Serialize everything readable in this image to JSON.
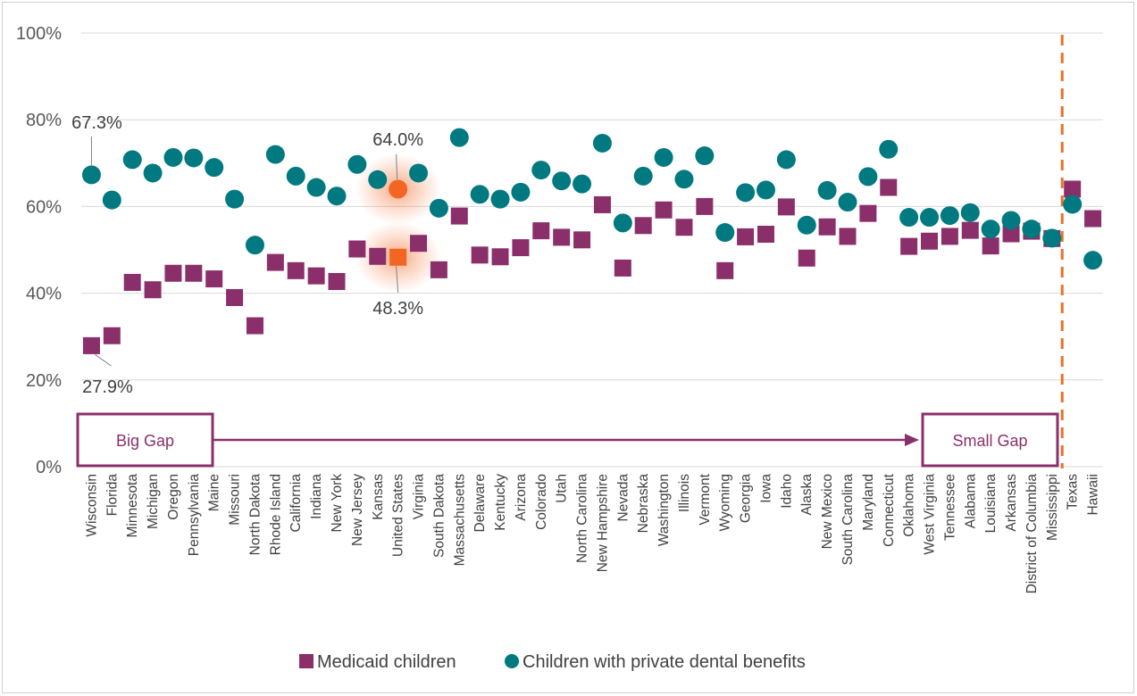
{
  "chart_data": {
    "type": "scatter",
    "title": "",
    "xlabel": "",
    "ylabel": "",
    "ylim": [
      0,
      100
    ],
    "yticks": [
      "0%",
      "20%",
      "40%",
      "60%",
      "80%",
      "100%"
    ],
    "grid": true,
    "legend_position": "bottom",
    "categories": [
      "Wisconsin",
      "Florida",
      "Minnesota",
      "Michigan",
      "Oregon",
      "Pennsylvania",
      "Maine",
      "Missouri",
      "North Dakota",
      "Rhode Island",
      "California",
      "Indiana",
      "New York",
      "New Jersey",
      "Kansas",
      "United States",
      "Virginia",
      "South Dakota",
      "Massachusetts",
      "Delaware",
      "Kentucky",
      "Arizona",
      "Colorado",
      "Utah",
      "North Carolina",
      "New Hampshire",
      "Nevada",
      "Nebraska",
      "Washington",
      "Illinois",
      "Vermont",
      "Wyoming",
      "Georgia",
      "Iowa",
      "Idaho",
      "Alaska",
      "New Mexico",
      "South Carolina",
      "Maryland",
      "Connecticut",
      "Oklahoma",
      "West Virginia",
      "Tennessee",
      "Alabama",
      "Louisiana",
      "Arkansas",
      "District of Columbia",
      "Mississippi",
      "Texas",
      "Hawaii"
    ],
    "series": [
      {
        "name": "Medicaid children",
        "color": "#8b2f6b",
        "marker": "square",
        "values": [
          27.9,
          30.2,
          42.5,
          40.8,
          44.6,
          44.6,
          43.3,
          39.0,
          32.5,
          47.1,
          45.2,
          44.0,
          42.7,
          50.2,
          48.5,
          48.3,
          51.5,
          45.4,
          57.8,
          48.8,
          48.4,
          50.5,
          54.4,
          52.9,
          52.3,
          60.4,
          45.8,
          55.6,
          59.2,
          55.2,
          60.0,
          45.2,
          53.0,
          53.6,
          59.9,
          48.1,
          55.3,
          53.1,
          58.4,
          64.4,
          50.8,
          52.0,
          53.1,
          54.5,
          50.9,
          53.7,
          54.3,
          52.6,
          64.0,
          57.2
        ]
      },
      {
        "name": "Children with private dental benefits",
        "color": "#007a80",
        "marker": "circle",
        "values": [
          67.3,
          61.5,
          70.8,
          67.7,
          71.3,
          71.2,
          69.0,
          61.7,
          51.1,
          72.0,
          67.0,
          64.4,
          62.4,
          69.7,
          66.2,
          64.0,
          67.7,
          59.6,
          75.9,
          62.8,
          61.7,
          63.3,
          68.4,
          65.9,
          65.2,
          74.6,
          56.2,
          67.0,
          71.3,
          66.3,
          71.7,
          54.0,
          63.2,
          63.8,
          70.8,
          55.7,
          63.7,
          61.0,
          66.9,
          73.2,
          57.5,
          57.5,
          57.9,
          58.6,
          54.8,
          56.8,
          54.8,
          52.7,
          60.5,
          47.6
        ]
      }
    ],
    "highlight_category": "United States",
    "annotations": [
      {
        "text": "67.3%",
        "category": "Wisconsin",
        "series": 1
      },
      {
        "text": "27.9%",
        "category": "Wisconsin",
        "series": 0
      },
      {
        "text": "64.0%",
        "category": "United States",
        "series": 1
      },
      {
        "text": "48.3%",
        "category": "United States",
        "series": 0
      }
    ],
    "gap": {
      "left_label": "Big Gap",
      "right_label": "Small Gap"
    },
    "divider_after": "Mississippi",
    "colors": {
      "medicaid": "#8b2f6b",
      "private": "#007a80",
      "highlight": "#f26522",
      "divider": "#e8722a",
      "grid": "#d9d9d9"
    }
  }
}
